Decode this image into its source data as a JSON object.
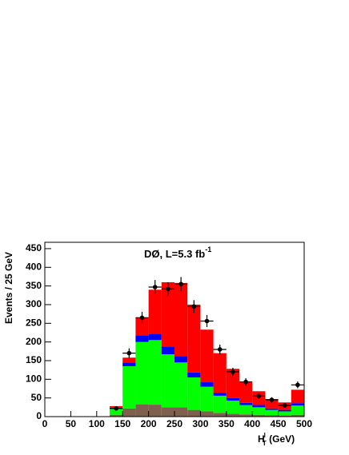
{
  "chart_data": {
    "type": "histogram",
    "annotation": {
      "text": "DØ, L=5.3 fb",
      "sup": "-1"
    },
    "xlabel": {
      "main": "H",
      "sup": "l",
      "sub": "T",
      "unit": " (GeV)"
    },
    "ylabel": "Events / 25 GeV",
    "bins": [
      0,
      25,
      50,
      75,
      100,
      125,
      150,
      175,
      200,
      225,
      250,
      275,
      300,
      325,
      350,
      375,
      400,
      425,
      450,
      475,
      500
    ],
    "series": [
      {
        "color": "#7f5f4f",
        "values": [
          0,
          0,
          0,
          0,
          0,
          5,
          22,
          33,
          32,
          25,
          25,
          18,
          14,
          10,
          8,
          6,
          5,
          4,
          3,
          5
        ]
      },
      {
        "color": "#00ff00",
        "values": [
          0,
          0,
          0,
          0,
          0,
          17,
          113,
          167,
          173,
          142,
          120,
          87,
          66,
          46,
          35,
          25,
          20,
          14,
          11,
          25
        ]
      },
      {
        "color": "#0000ff",
        "values": [
          0,
          0,
          0,
          0,
          0,
          2,
          10,
          18,
          17,
          21,
          17,
          13,
          12,
          8,
          7,
          6,
          6,
          4,
          4,
          6
        ]
      },
      {
        "color": "#ff0000",
        "values": [
          0,
          0,
          0,
          0,
          0,
          4,
          13,
          47,
          118,
          172,
          196,
          182,
          141,
          106,
          78,
          55,
          37,
          25,
          20,
          36
        ]
      }
    ],
    "data_points": {
      "color": "#000000",
      "x": [
        137.5,
        162.5,
        187.5,
        212.5,
        237.5,
        262.5,
        287.5,
        312.5,
        337.5,
        362.5,
        387.5,
        412.5,
        437.5,
        462.5,
        487.5
      ],
      "values": [
        22,
        170,
        265,
        347,
        342,
        355,
        295,
        256,
        180,
        120,
        93,
        55,
        45,
        30,
        85
      ],
      "errors": [
        5,
        13,
        16,
        19,
        18,
        19,
        17,
        16,
        13,
        11,
        10,
        7,
        7,
        5,
        9
      ]
    },
    "xlim": [
      0,
      500
    ],
    "ylim": [
      0,
      467
    ],
    "xticks": [
      0,
      50,
      100,
      150,
      200,
      250,
      300,
      350,
      400,
      450,
      500
    ],
    "yticks": [
      0,
      50,
      100,
      150,
      200,
      250,
      300,
      350,
      400,
      450
    ]
  }
}
